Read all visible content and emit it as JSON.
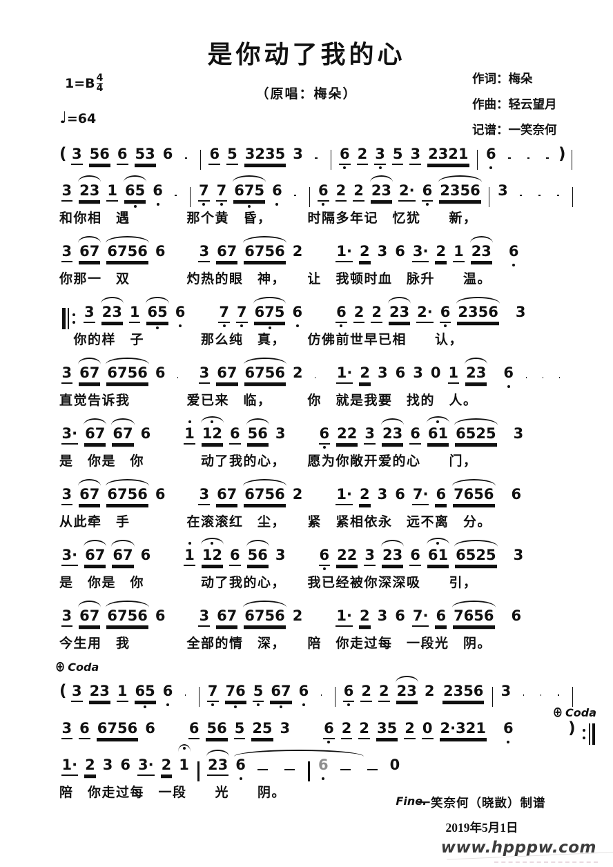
{
  "page": {
    "title": "是你动了我的心",
    "subtitle": "（原唱：梅朵）",
    "key": "1=B",
    "meter_top": "4",
    "meter_bottom": "4",
    "tempo_sign": "♩",
    "tempo_value": "=64",
    "credits": [
      "作词：梅朵",
      "作曲：轻云望月",
      "记谱：一笑奈何"
    ],
    "coda_sign": "⊕",
    "coda_label": "Coda",
    "fine": "Fine.",
    "footer_maker": "一笑奈何（晓敳）制谱",
    "footer_date": "2019年5月1日",
    "watermark": "www.hpppw.com",
    "colors": {
      "ink": "#111111",
      "watermark": "#3c3c3c"
    }
  },
  "lines": [
    {
      "tokens": [
        "(",
        "3:1",
        "56:2",
        "6:1",
        "53:2",
        "6",
        "-",
        "|",
        "6:1",
        "5:1",
        "3235:2",
        "3",
        "-",
        "|",
        "6:1d",
        "2:1",
        "3:1d",
        "5:1",
        "3:1",
        "2321:2",
        "|",
        "6:d",
        "-",
        "-",
        "-",
        ")",
        "|"
      ],
      "lyrics": ""
    },
    {
      "tokens": [
        "3:1",
        "23:2s",
        "1:1",
        "65:2ds",
        "6:d",
        "-",
        "|",
        "7:1d",
        "7:1d",
        "675:2ds",
        "6:d",
        "-",
        "|",
        "6:1d",
        "2:1",
        "2:1",
        "23:2s",
        "2·:1",
        "6:1d",
        "2356:2s",
        "|",
        "3",
        "-",
        "-",
        "-",
        "|"
      ],
      "lyrics": "和你相　遇　　　　那个黄　昏，　　　时隔多年记　忆犹　　新，"
    },
    {
      "tokens": [
        "3:1",
        "67:2s",
        "6756:2s",
        "6",
        "-",
        "|",
        "3:1",
        "67:2",
        "6756:2s",
        "2",
        "-",
        "|",
        "1·:1",
        "2:2",
        "3",
        "6",
        "3·:1",
        "2:2",
        "1:1",
        "23:2s",
        "|",
        "6:d",
        "-",
        "-",
        "-",
        "|"
      ],
      "lyrics": "你那一　双　　　　灼热的眼　神，　　让　我顿时血　脉升　　温。"
    },
    {
      "tokens": [
        "||:",
        "3:1",
        "23:2s",
        "1:1",
        "65:2ds",
        "6:d",
        "-",
        "|",
        "7:1d",
        "7:1d",
        "675:2ds",
        "6:d",
        "-",
        "|",
        "6:1d",
        "2:1",
        "2:1",
        "23:2s",
        "2·:1",
        "6:1d",
        "2356:2s",
        "|",
        "3",
        "-",
        "-",
        "-",
        "|"
      ],
      "lyrics": "　你的样　子　　　　那么纯　真，　　仿佛前世早已相　　认，"
    },
    {
      "tokens": [
        "3:1",
        "67:2s",
        "6756:2s",
        "6",
        "-",
        "|",
        "3:1",
        "67:2",
        "6756:2s",
        "2",
        "-",
        "|",
        "1·:1",
        "2:2",
        "3",
        "6",
        "3",
        "0",
        "1:1",
        "23:2s",
        "|",
        "6:d",
        "-",
        "-",
        "-",
        "|"
      ],
      "lyrics": "直觉告诉我　　　　爱已来　临，　　　你　就是我要　找的　人。"
    },
    {
      "tokens": [
        "3·:1",
        "67:2s",
        "67:2s",
        "6",
        "-",
        "|",
        "1:1a",
        "12:2sa",
        "6:1",
        "56:2s",
        "3",
        "-",
        "|",
        "6:1d",
        "22:2",
        "3:1",
        "23:2s",
        "6:1",
        "61:2sa",
        "6525:2s",
        "|",
        "3",
        "-",
        "-",
        "-",
        "|"
      ],
      "lyrics": "是　你是　你　　　　动了我的心，　　愿为你敞开爱的心　　门，"
    },
    {
      "tokens": [
        "3:1",
        "67:2s",
        "6756:2s",
        "6",
        "-",
        "|",
        "3:1",
        "67:2",
        "6756:2s",
        "2",
        "-",
        "|",
        "1·:1",
        "2:2",
        "3",
        "6",
        "7·:1",
        "6:2",
        "7656:2s",
        "|",
        "6",
        "-",
        "-",
        "-",
        "|"
      ],
      "lyrics": "从此牵　手　　　　在滚滚红　尘，　　紧　紧相依永　远不离　分。"
    },
    {
      "tokens": [
        "3·:1",
        "67:2s",
        "67:2s",
        "6",
        "-",
        "|",
        "1:1a",
        "12:2sa",
        "6:1",
        "56:2s",
        "3",
        "-",
        "|",
        "6:1d",
        "22:2",
        "3:1",
        "23:2s",
        "6:1",
        "61:2sa",
        "6525:2s",
        "|",
        "3",
        "-",
        "-",
        "-",
        "|"
      ],
      "lyrics": "是　你是　你　　　　动了我的心，　　我已经被你深深吸　　引，"
    },
    {
      "tokens": [
        "3:1",
        "67:2s",
        "6756:2s",
        "6",
        "-",
        "|",
        "3:1",
        "67:2",
        "6756:2s",
        "2",
        "-",
        "|",
        "1·:1",
        "2:2",
        "3",
        "6",
        "7·:1",
        "6:2",
        "7656:2s",
        "|",
        "6",
        "-",
        "-",
        "-",
        "|"
      ],
      "lyrics": "今生用　我　　　　全部的情　深，　　陪　你走过每　一段光　阴。"
    },
    {
      "coda_left": true,
      "coda_right": true,
      "tokens": [
        "(",
        "3:1",
        "23:2",
        "1:1",
        "65:2d",
        "6:d",
        "-",
        "|",
        "7:1d",
        "76:2d",
        "5:1d",
        "67:2d",
        "6:d",
        "-",
        "|",
        "6:1d",
        "2:1",
        "2:1",
        "23:2s",
        "2",
        "~",
        "2356:2",
        "|",
        "3",
        "-",
        "-",
        "-",
        "|"
      ],
      "lyrics": ""
    },
    {
      "tokens": [
        "3:1",
        "6:1",
        "6756:2",
        "6",
        "-",
        "|",
        "6:1",
        "56:2",
        "5:1",
        "25:2",
        "3",
        "-",
        "|",
        "6:1d",
        "2:1",
        "2:1",
        "35:2",
        "2:1",
        "0:1",
        "2·321:2",
        "|",
        "6:d",
        "-",
        "-",
        "-",
        ")",
        ":||"
      ],
      "lyrics": ""
    },
    {
      "fine": true,
      "tokens": [
        "1·:1",
        "2:2",
        "3",
        "6",
        "3·:1",
        "2:2",
        "1:f",
        "|",
        "23:1s",
        "6:dw",
        "-",
        "-",
        "|",
        "6:dg",
        "-",
        "-",
        "0",
        "fin"
      ],
      "lyrics": "陪　你走过每　一段　　光　　阴。"
    }
  ]
}
